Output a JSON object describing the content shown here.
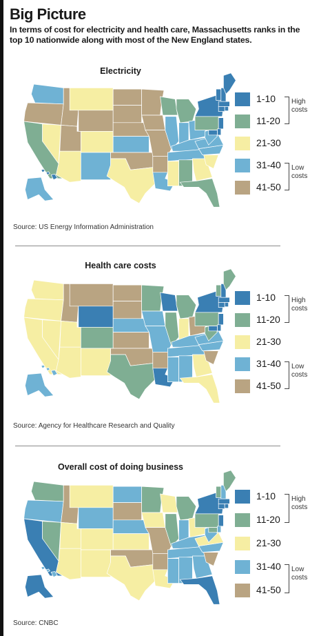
{
  "header": {
    "title": "Big Picture",
    "subtitle": "In terms of cost for electricity and health care, Massachusetts ranks in the top 10 nationwide along with most of the New England states."
  },
  "legend": {
    "items": [
      {
        "label": "1-10",
        "color": "#3a7fb3"
      },
      {
        "label": "11-20",
        "color": "#7fae93"
      },
      {
        "label": "21-30",
        "color": "#f6eea3"
      },
      {
        "label": "31-40",
        "color": "#6fb2d4"
      },
      {
        "label": "41-50",
        "color": "#b9a482"
      }
    ],
    "high_label": "High costs",
    "low_label": "Low costs"
  },
  "maps": [
    {
      "title": "Electricity",
      "source": "Source: US Energy Information Administration",
      "states": {
        "WA": 3,
        "OR": 4,
        "CA": 1,
        "NV": 2,
        "ID": 4,
        "MT": 2,
        "WY": 4,
        "UT": 4,
        "AZ": 2,
        "NM": 3,
        "CO": 2,
        "ND": 4,
        "SD": 4,
        "NE": 4,
        "KS": 3,
        "OK": 4,
        "TX": 2,
        "MN": 4,
        "IA": 4,
        "MO": 4,
        "AR": 4,
        "LA": 3,
        "WI": 1,
        "IL": 3,
        "MI": 1,
        "IN": 3,
        "OH": 3,
        "KY": 3,
        "TN": 3,
        "MS": 2,
        "AL": 1,
        "GA": 2,
        "FL": 1,
        "SC": 2,
        "NC": 3,
        "VA": 3,
        "WV": 3,
        "PA": 1,
        "NY": 0,
        "VT": 0,
        "NH": 0,
        "ME": 0,
        "MA": 0,
        "CT": 0,
        "RI": 0,
        "NJ": 0,
        "DE": 0,
        "MD": 0,
        "AK": 3,
        "HI": 0
      }
    },
    {
      "title": "Health care costs",
      "source": "Source: Agency for Healthcare Research and Quality",
      "states": {
        "WA": 2,
        "OR": 2,
        "CA": 2,
        "NV": 2,
        "ID": 4,
        "MT": 4,
        "WY": 0,
        "UT": 2,
        "AZ": 2,
        "NM": 2,
        "CO": 1,
        "ND": 4,
        "SD": 4,
        "NE": 3,
        "KS": 4,
        "OK": 4,
        "TX": 1,
        "MN": 1,
        "IA": 3,
        "MO": 3,
        "AR": 4,
        "LA": 0,
        "WI": 0,
        "IL": 1,
        "MI": 1,
        "IN": 2,
        "OH": 4,
        "KY": 3,
        "TN": 3,
        "MS": 3,
        "AL": 3,
        "GA": 2,
        "FL": 2,
        "SC": 4,
        "NC": 3,
        "VA": 3,
        "WV": 1,
        "PA": 1,
        "NY": 0,
        "VT": 1,
        "NH": 0,
        "ME": 1,
        "MA": 0,
        "CT": 0,
        "RI": 0,
        "NJ": 0,
        "DE": 0,
        "MD": 0,
        "AK": 3,
        "HI": 3
      }
    },
    {
      "title": "Overall cost of doing business",
      "source": "Source: CNBC",
      "states": {
        "WA": 1,
        "OR": 3,
        "CA": 0,
        "NV": 1,
        "ID": 4,
        "MT": 2,
        "WY": 3,
        "UT": 2,
        "AZ": 2,
        "NM": 2,
        "CO": 2,
        "ND": 3,
        "SD": 4,
        "NE": 3,
        "KS": 2,
        "OK": 4,
        "TX": 2,
        "MN": 1,
        "IA": 2,
        "MO": 4,
        "AR": 4,
        "LA": 2,
        "WI": 2,
        "IL": 1,
        "MI": 1,
        "IN": 3,
        "OH": 2,
        "KY": 3,
        "TN": 3,
        "MS": 3,
        "AL": 3,
        "GA": 3,
        "FL": 0,
        "SC": 4,
        "NC": 3,
        "VA": 2,
        "WV": 3,
        "PA": 1,
        "NY": 0,
        "VT": 1,
        "NH": 3,
        "ME": 1,
        "MA": 0,
        "CT": 0,
        "RI": 0,
        "NJ": 0,
        "DE": 3,
        "MD": 1,
        "AK": 0,
        "HI": 3
      }
    }
  ]
}
